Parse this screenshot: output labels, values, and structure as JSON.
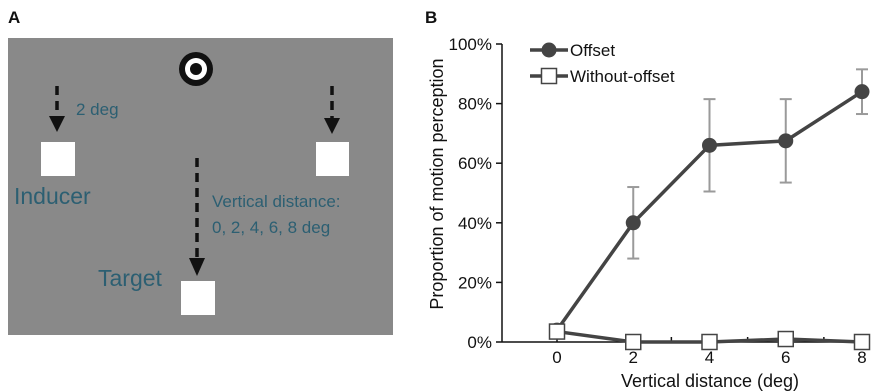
{
  "panel_a": {
    "letter": "A",
    "arrow_label": "2 deg",
    "inducer_label": "Inducer",
    "target_label": "Target",
    "distance_label_line1": "Vertical distance:",
    "distance_label_line2": "0, 2, 4, 6, 8 deg",
    "colors": {
      "background": "#898989",
      "text": "#2c5f72",
      "squares": "#ffffff"
    },
    "icons": {
      "fixation": "bullseye-icon",
      "arrows": "dashed-down-arrow-icon"
    }
  },
  "panel_b": {
    "letter": "B"
  },
  "chart_data": {
    "type": "line",
    "title": "",
    "xlabel": "Vertical distance (deg)",
    "ylabel": "Proportion of motion perception",
    "x": [
      0,
      2,
      4,
      6,
      8
    ],
    "x_tick_labels": [
      "0",
      "2",
      "4",
      "6",
      "8"
    ],
    "xlim": [
      0,
      8
    ],
    "ylim": [
      0,
      100
    ],
    "y_tick_labels": [
      "0%",
      "20%",
      "40%",
      "60%",
      "80%",
      "100%"
    ],
    "y_ticks": [
      0,
      20,
      40,
      60,
      80,
      100
    ],
    "grid": false,
    "legend_position": "top-left",
    "series": [
      {
        "name": "Offset",
        "marker": "filled-circle",
        "color": "#444444",
        "values": [
          4,
          40,
          66,
          67.5,
          84
        ],
        "error": [
          0,
          12,
          15.5,
          14,
          7.5
        ]
      },
      {
        "name": "Without-offset",
        "marker": "open-square",
        "color": "#444444",
        "values": [
          3.5,
          0,
          0,
          1,
          0
        ],
        "error": [
          0,
          0,
          0,
          0.5,
          0
        ]
      }
    ]
  }
}
